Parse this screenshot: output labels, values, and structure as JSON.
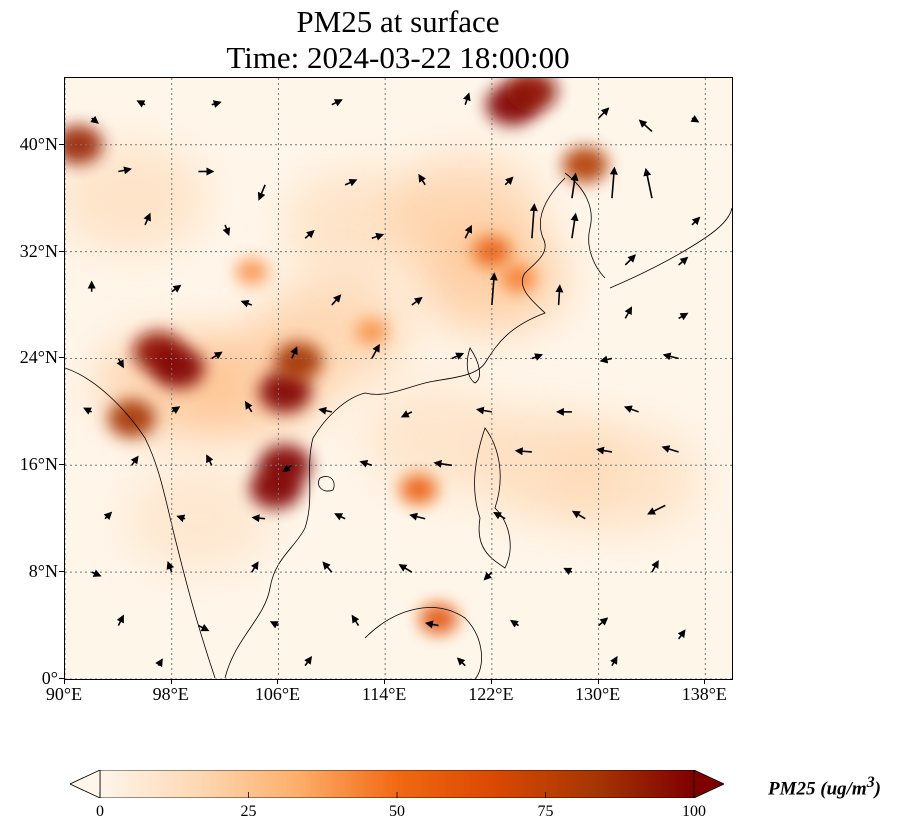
{
  "title": {
    "line1": "PM25 at surface",
    "line2": "Time: 2024-03-22 18:00:00"
  },
  "map": {
    "extent": {
      "lon": [
        90,
        140
      ],
      "lat": [
        0,
        45
      ]
    },
    "lat_ticks": [
      {
        "value": 40,
        "label": "40°N"
      },
      {
        "value": 32,
        "label": "32°N"
      },
      {
        "value": 24,
        "label": "24°N"
      },
      {
        "value": 16,
        "label": "16°N"
      },
      {
        "value": 8,
        "label": "8°N"
      },
      {
        "value": 0,
        "label": "0°"
      }
    ],
    "lon_ticks": [
      {
        "value": 90,
        "label": "90°E"
      },
      {
        "value": 98,
        "label": "98°E"
      },
      {
        "value": 106,
        "label": "106°E"
      },
      {
        "value": 114,
        "label": "114°E"
      },
      {
        "value": 122,
        "label": "122°E"
      },
      {
        "value": 130,
        "label": "130°E"
      },
      {
        "value": 138,
        "label": "138°E"
      }
    ],
    "gridlines": "dotted",
    "variable": "PM25",
    "hotspots": [
      {
        "lon": 123.5,
        "lat": 43.0,
        "value": 100
      },
      {
        "lon": 125.0,
        "lat": 44.0,
        "value": 95
      },
      {
        "lon": 91.0,
        "lat": 40.0,
        "value": 90
      },
      {
        "lon": 97.0,
        "lat": 24.5,
        "value": 95
      },
      {
        "lon": 98.5,
        "lat": 23.3,
        "value": 100
      },
      {
        "lon": 95.0,
        "lat": 19.5,
        "value": 85
      },
      {
        "lon": 106.5,
        "lat": 21.5,
        "value": 100
      },
      {
        "lon": 106.5,
        "lat": 16.0,
        "value": 100
      },
      {
        "lon": 105.8,
        "lat": 14.3,
        "value": 100
      },
      {
        "lon": 107.5,
        "lat": 23.8,
        "value": 85
      },
      {
        "lon": 122.0,
        "lat": 32.0,
        "value": 55
      },
      {
        "lon": 124.0,
        "lat": 30.0,
        "value": 45
      },
      {
        "lon": 118.0,
        "lat": 4.5,
        "value": 60
      },
      {
        "lon": 116.5,
        "lat": 14.2,
        "value": 55
      },
      {
        "lon": 129.0,
        "lat": 38.5,
        "value": 80
      },
      {
        "lon": 104.0,
        "lat": 30.5,
        "value": 40
      },
      {
        "lon": 113.0,
        "lat": 26.0,
        "value": 40
      }
    ],
    "wind_vectors": [
      [
        92,
        42,
        0.5,
        -0.4
      ],
      [
        96,
        43,
        -0.6,
        0.3
      ],
      [
        101,
        43,
        0.7,
        0.2
      ],
      [
        110,
        43,
        0.8,
        0.4
      ],
      [
        120,
        43,
        0.3,
        0.9
      ],
      [
        130,
        42,
        0.8,
        0.8
      ],
      [
        134,
        41,
        -1.0,
        0.9
      ],
      [
        137,
        42,
        0.5,
        -0.3
      ],
      [
        94,
        38,
        1.0,
        0.2
      ],
      [
        100,
        38,
        1.2,
        0.0
      ],
      [
        105,
        37,
        -0.5,
        -1.2
      ],
      [
        111,
        37,
        0.9,
        0.4
      ],
      [
        117,
        37,
        -0.5,
        0.8
      ],
      [
        123,
        37,
        0.6,
        0.6
      ],
      [
        128,
        36,
        0.3,
        2.0
      ],
      [
        131,
        36,
        0.2,
        2.5
      ],
      [
        134,
        36,
        -0.5,
        2.4
      ],
      [
        137,
        34,
        0.6,
        0.6
      ],
      [
        96,
        34,
        0.4,
        0.9
      ],
      [
        102,
        34,
        0.3,
        -0.8
      ],
      [
        108,
        33,
        0.7,
        0.6
      ],
      [
        113,
        33,
        0.9,
        0.3
      ],
      [
        120,
        33,
        0.5,
        1.0
      ],
      [
        125,
        33,
        0.2,
        2.8
      ],
      [
        128,
        33,
        0.3,
        2.0
      ],
      [
        132,
        31,
        0.8,
        0.8
      ],
      [
        136,
        31,
        0.7,
        0.6
      ],
      [
        92,
        29,
        0.0,
        0.8
      ],
      [
        98,
        29,
        0.7,
        0.5
      ],
      [
        104,
        28,
        -0.8,
        0.3
      ],
      [
        110,
        28,
        0.7,
        0.8
      ],
      [
        116,
        28,
        0.8,
        0.6
      ],
      [
        122,
        28,
        0.2,
        2.6
      ],
      [
        127,
        28,
        0.1,
        1.6
      ],
      [
        132,
        27,
        0.5,
        0.9
      ],
      [
        136,
        27,
        0.7,
        0.4
      ],
      [
        94,
        24,
        0.4,
        -0.7
      ],
      [
        101,
        24,
        0.8,
        0.5
      ],
      [
        107,
        24,
        0.4,
        0.9
      ],
      [
        113,
        24,
        0.6,
        1.1
      ],
      [
        119,
        24,
        0.9,
        0.4
      ],
      [
        125,
        24,
        0.8,
        0.3
      ],
      [
        131,
        24,
        -0.9,
        -0.2
      ],
      [
        136,
        24,
        -1.2,
        0.3
      ],
      [
        92,
        20,
        -0.6,
        0.3
      ],
      [
        98,
        20,
        0.6,
        0.4
      ],
      [
        104,
        20,
        -0.5,
        0.8
      ],
      [
        110,
        20,
        -1.0,
        0.2
      ],
      [
        116,
        20,
        -0.8,
        -0.4
      ],
      [
        122,
        20,
        -1.2,
        0.2
      ],
      [
        128,
        20,
        -1.2,
        0.0
      ],
      [
        133,
        20,
        -1.1,
        0.4
      ],
      [
        95,
        16,
        0.5,
        0.7
      ],
      [
        101,
        16,
        -0.4,
        0.8
      ],
      [
        107,
        16,
        -0.7,
        -0.5
      ],
      [
        113,
        16,
        -0.9,
        0.3
      ],
      [
        119,
        16,
        -1.4,
        0.2
      ],
      [
        125,
        17,
        -1.3,
        0.1
      ],
      [
        131,
        17,
        -1.2,
        0.2
      ],
      [
        136,
        17,
        -1.3,
        0.4
      ],
      [
        93,
        12,
        0.5,
        0.5
      ],
      [
        99,
        12,
        -0.6,
        0.2
      ],
      [
        105,
        12,
        -1.0,
        0.1
      ],
      [
        111,
        12,
        -0.8,
        0.4
      ],
      [
        117,
        12,
        -1.2,
        0.3
      ],
      [
        123,
        12,
        -0.9,
        0.5
      ],
      [
        129,
        12,
        -1.0,
        0.6
      ],
      [
        135,
        13,
        -1.4,
        -0.7
      ],
      [
        92,
        8,
        0.7,
        -0.3
      ],
      [
        98,
        8,
        -0.3,
        0.8
      ],
      [
        104,
        8,
        0.5,
        0.8
      ],
      [
        110,
        8,
        -0.7,
        0.8
      ],
      [
        116,
        8,
        -1.0,
        0.6
      ],
      [
        122,
        8,
        -0.6,
        -0.6
      ],
      [
        128,
        8,
        -0.6,
        0.3
      ],
      [
        134,
        8,
        0.5,
        0.9
      ],
      [
        94,
        4,
        0.4,
        0.8
      ],
      [
        100,
        4,
        0.8,
        -0.4
      ],
      [
        106,
        4,
        -0.6,
        0.3
      ],
      [
        112,
        4,
        -0.5,
        0.8
      ],
      [
        118,
        4,
        -1.0,
        0.2
      ],
      [
        124,
        4,
        -0.6,
        0.4
      ],
      [
        130,
        4,
        0.7,
        0.6
      ],
      [
        136,
        3,
        0.5,
        0.7
      ],
      [
        97,
        1,
        0.3,
        0.5
      ],
      [
        108,
        1,
        0.5,
        0.7
      ],
      [
        120,
        1,
        -0.6,
        0.6
      ],
      [
        131,
        1,
        0.4,
        0.7
      ]
    ]
  },
  "colorbar": {
    "label": "PM25 (ug/m3)",
    "label_prefix": "PM25 (ug/m",
    "label_exp": "3",
    "label_suffix": ")",
    "ticks": [
      {
        "value": 0,
        "label": "0"
      },
      {
        "value": 25,
        "label": "25"
      },
      {
        "value": 50,
        "label": "50"
      },
      {
        "value": 75,
        "label": "75"
      },
      {
        "value": 100,
        "label": "100"
      }
    ],
    "range": [
      0,
      100
    ],
    "extend": "both",
    "colormap": [
      "#fff5eb",
      "#fdd8b3",
      "#fdae6b",
      "#f16913",
      "#d94801",
      "#a63603",
      "#7f0000"
    ]
  }
}
